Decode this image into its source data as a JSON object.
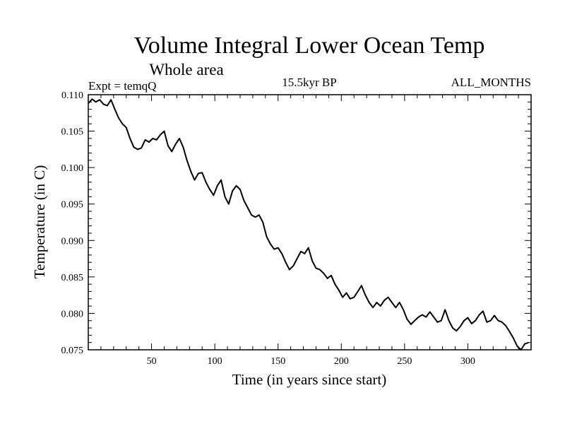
{
  "chart_data": {
    "type": "line",
    "title": "Volume Integral Lower Ocean Temp",
    "subtitle": "Whole area",
    "left_label": "Expt = temqQ",
    "center_label": "15.5kyr BP",
    "right_label": "ALL_MONTHS",
    "xlabel": "Time (in years since start)",
    "ylabel": "Temperature (in C)",
    "xlim": [
      0,
      350
    ],
    "ylim": [
      0.075,
      0.11
    ],
    "xticks": [
      50,
      100,
      150,
      200,
      250,
      300
    ],
    "xtick_labels": [
      "50",
      "100",
      "150",
      "200",
      "250",
      "300"
    ],
    "yticks": [
      0.075,
      0.08,
      0.085,
      0.09,
      0.095,
      0.1,
      0.105,
      0.11
    ],
    "ytick_labels": [
      "0.075",
      "0.080",
      "0.085",
      "0.090",
      "0.095",
      "0.100",
      "0.105",
      "0.110"
    ],
    "grid": false,
    "line_color": "#000000",
    "series": [
      {
        "name": "temqQ",
        "x": [
          0,
          3,
          6,
          9,
          12,
          15,
          18,
          21,
          24,
          27,
          30,
          33,
          36,
          39,
          42,
          45,
          48,
          51,
          54,
          57,
          60,
          63,
          66,
          69,
          72,
          75,
          78,
          81,
          84,
          87,
          90,
          93,
          96,
          99,
          102,
          105,
          108,
          111,
          114,
          117,
          120,
          123,
          126,
          129,
          132,
          135,
          138,
          141,
          144,
          147,
          150,
          153,
          156,
          159,
          162,
          165,
          168,
          171,
          174,
          177,
          180,
          183,
          186,
          189,
          192,
          195,
          198,
          201,
          204,
          207,
          210,
          213,
          216,
          219,
          222,
          225,
          228,
          231,
          234,
          237,
          240,
          243,
          246,
          249,
          252,
          255,
          258,
          261,
          264,
          267,
          270,
          273,
          276,
          279,
          282,
          285,
          288,
          291,
          294,
          297,
          300,
          303,
          306,
          309,
          312,
          315,
          318,
          321,
          324,
          327,
          330,
          333,
          336,
          339,
          342,
          345,
          348
        ],
        "values": [
          0.1088,
          0.1094,
          0.109,
          0.1093,
          0.1087,
          0.1085,
          0.1093,
          0.108,
          0.1068,
          0.106,
          0.1055,
          0.104,
          0.1028,
          0.1025,
          0.1027,
          0.1038,
          0.1035,
          0.104,
          0.1038,
          0.1045,
          0.105,
          0.103,
          0.1022,
          0.1032,
          0.104,
          0.1028,
          0.101,
          0.0995,
          0.0983,
          0.0992,
          0.0993,
          0.098,
          0.097,
          0.0962,
          0.0975,
          0.0983,
          0.096,
          0.095,
          0.0968,
          0.0975,
          0.097,
          0.0955,
          0.0945,
          0.0935,
          0.0932,
          0.0935,
          0.0925,
          0.0905,
          0.0895,
          0.0888,
          0.089,
          0.0882,
          0.087,
          0.086,
          0.0865,
          0.0875,
          0.0885,
          0.0882,
          0.089,
          0.0872,
          0.0862,
          0.086,
          0.0855,
          0.0848,
          0.0852,
          0.084,
          0.0832,
          0.0822,
          0.0828,
          0.082,
          0.0822,
          0.083,
          0.0838,
          0.0825,
          0.0815,
          0.0808,
          0.0815,
          0.081,
          0.0818,
          0.0822,
          0.0815,
          0.0808,
          0.0815,
          0.0805,
          0.0792,
          0.0785,
          0.079,
          0.0795,
          0.0798,
          0.0795,
          0.0802,
          0.0795,
          0.0788,
          0.079,
          0.0805,
          0.079,
          0.078,
          0.0776,
          0.0782,
          0.079,
          0.0794,
          0.0786,
          0.079,
          0.0798,
          0.0803,
          0.0788,
          0.079,
          0.0797,
          0.079,
          0.0788,
          0.0783,
          0.0775,
          0.0766,
          0.0755,
          0.0745,
          0.0758,
          0.076
        ]
      }
    ]
  }
}
